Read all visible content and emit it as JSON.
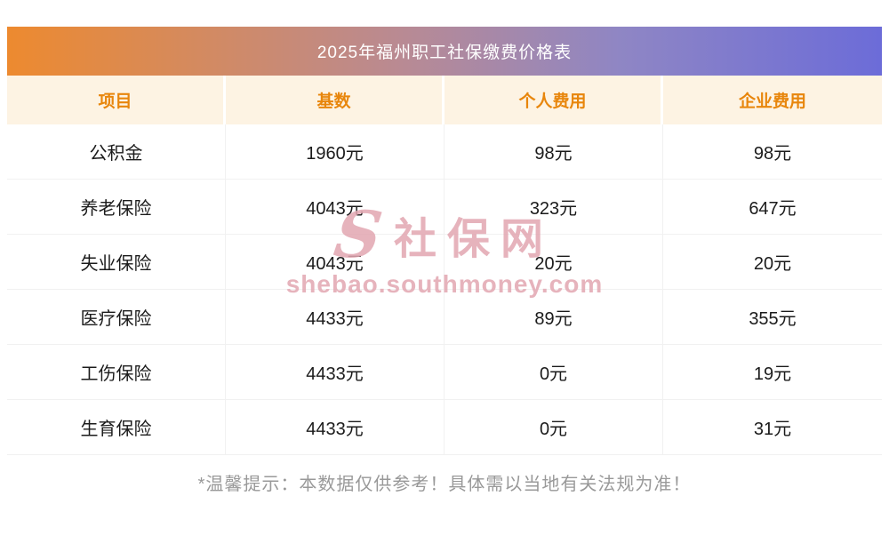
{
  "title": "2025年福州职工社保缴费价格表",
  "table": {
    "headers": [
      "项目",
      "基数",
      "个人费用",
      "企业费用"
    ],
    "rows": [
      {
        "item": "公积金",
        "base": "1960元",
        "personal": "98元",
        "company": "98元"
      },
      {
        "item": "养老保险",
        "base": "4043元",
        "personal": "323元",
        "company": "647元"
      },
      {
        "item": "失业保险",
        "base": "4043元",
        "personal": "20元",
        "company": "20元"
      },
      {
        "item": "医疗保险",
        "base": "4433元",
        "personal": "89元",
        "company": "355元"
      },
      {
        "item": "工伤保险",
        "base": "4433元",
        "personal": "0元",
        "company": "19元"
      },
      {
        "item": "生育保险",
        "base": "4433元",
        "personal": "0元",
        "company": "31元"
      }
    ]
  },
  "watermark": {
    "logo": "S",
    "name": "社保网",
    "url": "shebao.southmoney.com"
  },
  "footer_note": "*温馨提示：本数据仅供参考！具体需以当地有关法规为准！",
  "colors": {
    "gradient_start": "#ed8a2f",
    "gradient_end": "#6c6cd8",
    "header_bg": "#fdf3e3",
    "header_text": "#e8860c",
    "watermark": "#e2a6b1"
  }
}
